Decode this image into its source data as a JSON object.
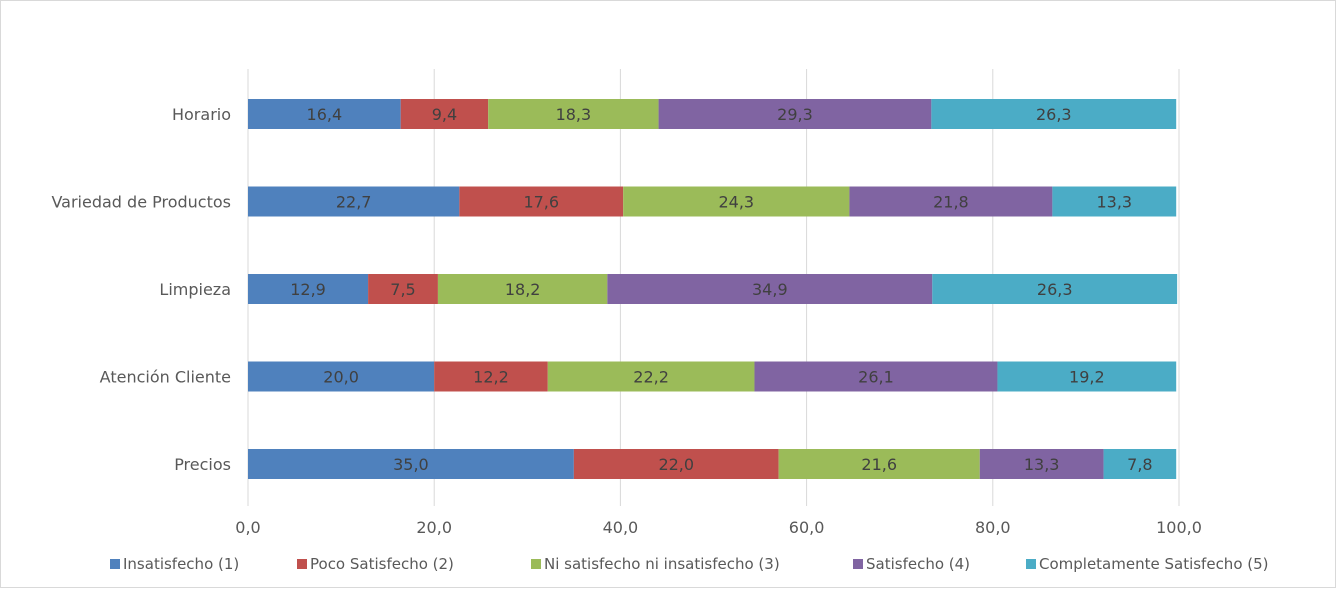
{
  "chart_data": {
    "type": "bar",
    "orientation": "horizontal",
    "stacked": true,
    "categories": [
      "Horario",
      "Variedad de Productos",
      "Limpieza",
      "Atención Cliente",
      "Precios"
    ],
    "series": [
      {
        "name": "Insatisfecho (1)",
        "color": "#4f81bd",
        "values": [
          16.4,
          22.7,
          12.9,
          20.0,
          35.0
        ],
        "labels": [
          "16,4",
          "22,7",
          "12,9",
          "20,0",
          "35,0"
        ]
      },
      {
        "name": "Poco Satisfecho (2)",
        "color": "#c0504d",
        "values": [
          9.4,
          17.6,
          7.5,
          12.2,
          22.0
        ],
        "labels": [
          "9,4",
          "17,6",
          "7,5",
          "12,2",
          "22,0"
        ]
      },
      {
        "name": "Ni satisfecho ni insatisfecho (3)",
        "color": "#9bbb59",
        "values": [
          18.3,
          24.3,
          18.2,
          22.2,
          21.6
        ],
        "labels": [
          "18,3",
          "24,3",
          "18,2",
          "22,2",
          "21,6"
        ]
      },
      {
        "name": "Satisfecho (4)",
        "color": "#8064a2",
        "values": [
          29.3,
          21.8,
          34.9,
          26.1,
          13.3
        ],
        "labels": [
          "29,3",
          "21,8",
          "34,9",
          "26,1",
          "13,3"
        ]
      },
      {
        "name": "Completamente Satisfecho (5)",
        "color": "#4bacc6",
        "values": [
          26.3,
          13.3,
          26.3,
          19.2,
          7.8
        ],
        "labels": [
          "26,3",
          "13,3",
          "26,3",
          "19,2",
          "7,8"
        ]
      }
    ],
    "xlim": [
      0,
      100
    ],
    "xticks": [
      "0,0",
      "20,0",
      "40,0",
      "60,0",
      "80,0",
      "100,0"
    ],
    "grid": true,
    "legend": "bottom",
    "title": "",
    "xlabel": "",
    "ylabel": ""
  }
}
